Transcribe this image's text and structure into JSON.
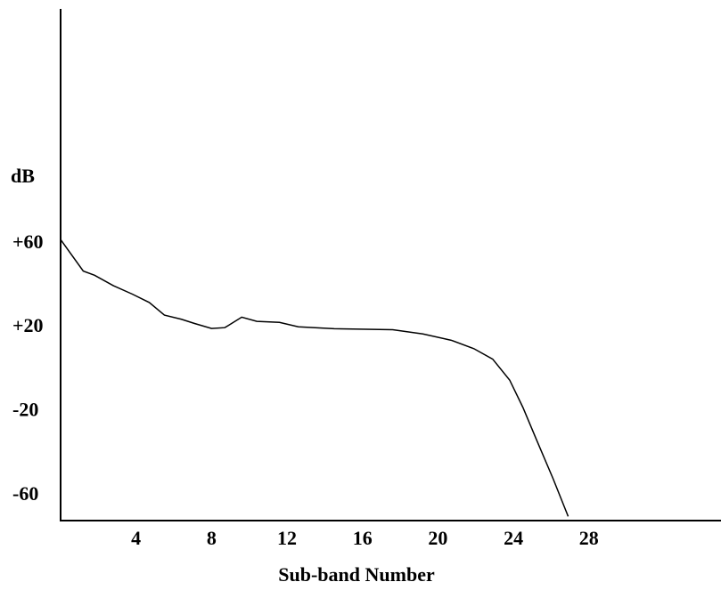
{
  "chart_data": {
    "type": "line",
    "x_label": "Sub-band Number",
    "y_label": "dB",
    "x": [
      0,
      1.2,
      1.8,
      2.8,
      3.8,
      4.7,
      5.5,
      6.4,
      7.1,
      8,
      8.7,
      9.6,
      10.4,
      11.6,
      12.6,
      14.5,
      17.6,
      19.2,
      20.7,
      21.9,
      22.9,
      23.8,
      24.5,
      25.2,
      26.1,
      26.9
    ],
    "series": [
      {
        "color": "#000000",
        "values": [
          62,
          47,
          45,
          40,
          36,
          32,
          26,
          24,
          22,
          19.6,
          20,
          25,
          23,
          22.5,
          20.4,
          19.5,
          19,
          17,
          14,
          10,
          5,
          -5,
          -18,
          -33,
          -52,
          -70
        ]
      }
    ],
    "xlim": [
      0,
      35
    ],
    "xticks": [
      4,
      8,
      12,
      16,
      20,
      24,
      28
    ],
    "ylim": [
      -72,
      172
    ],
    "yticks": [
      {
        "value": 60,
        "label": "+60"
      },
      {
        "value": 20,
        "label": "+20"
      },
      -20,
      -60
    ]
  }
}
